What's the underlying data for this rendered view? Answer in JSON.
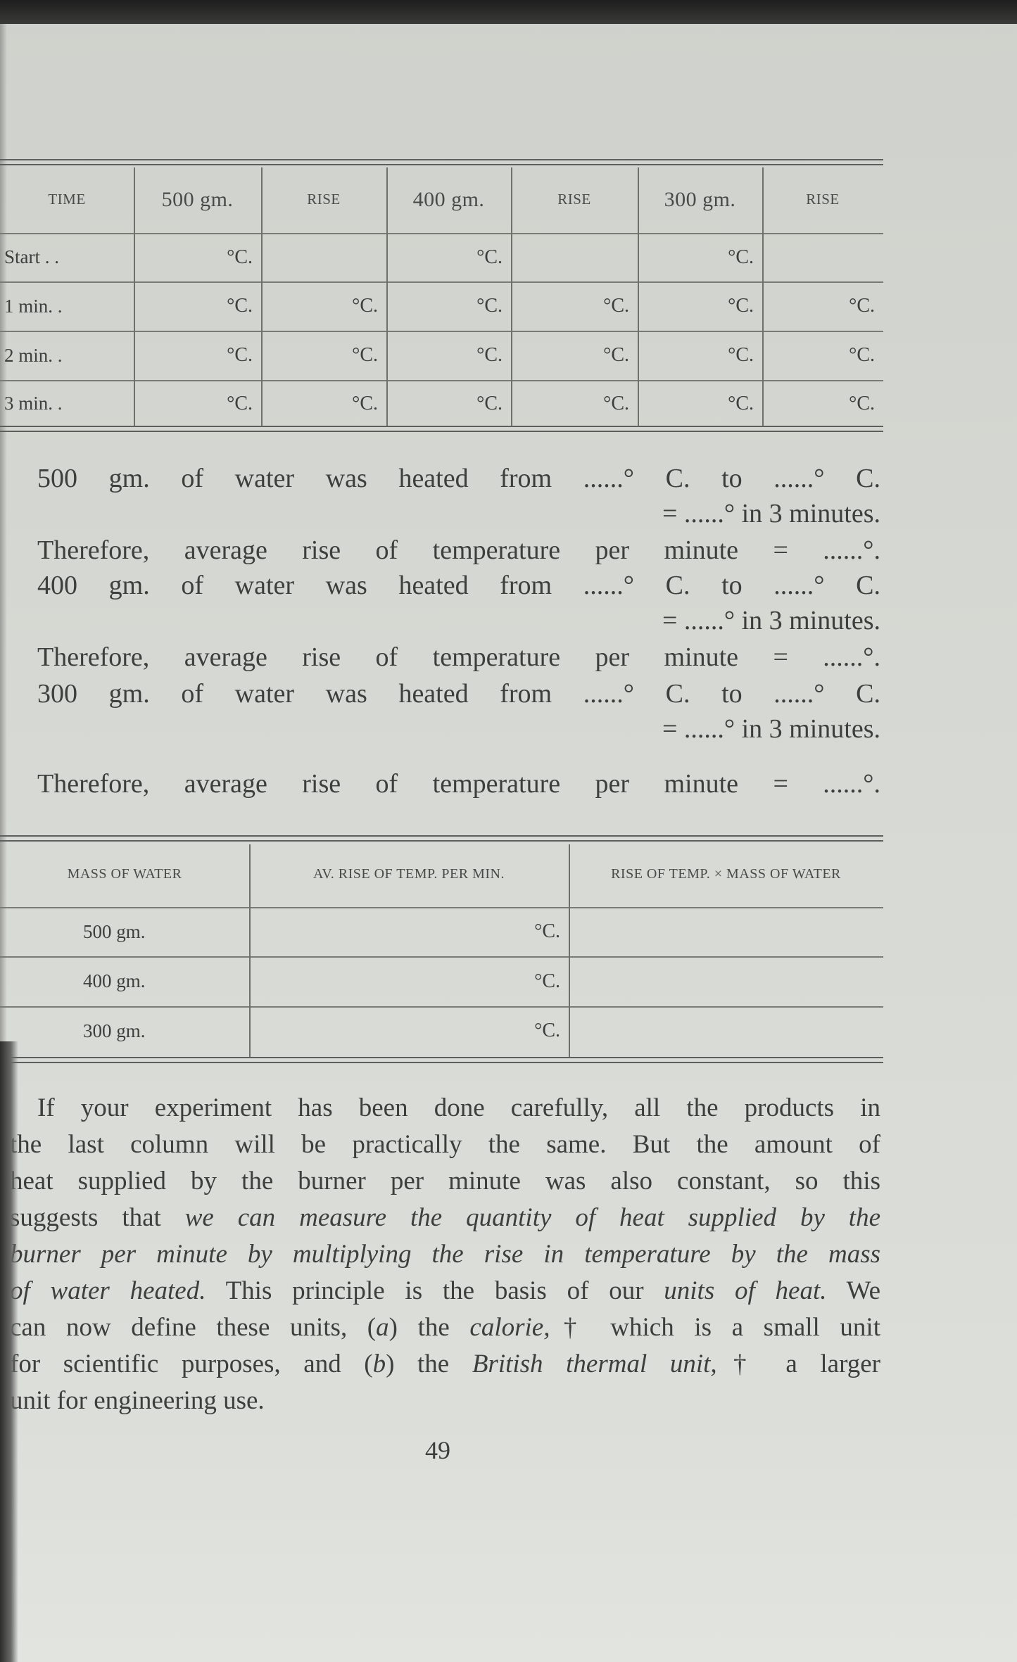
{
  "table1": {
    "headers": [
      "TIME",
      "500 gm.",
      "RISE",
      "400 gm.",
      "RISE",
      "300 gm.",
      "RISE"
    ],
    "rows": [
      {
        "label": "Start . .",
        "cells": [
          "°C.",
          "",
          "°C.",
          "",
          "°C.",
          ""
        ]
      },
      {
        "label": "1 min. .",
        "cells": [
          "°C.",
          "°C.",
          "°C.",
          "°C.",
          "°C.",
          "°C."
        ]
      },
      {
        "label": "2 min. .",
        "cells": [
          "°C.",
          "°C.",
          "°C.",
          "°C.",
          "°C.",
          "°C."
        ]
      },
      {
        "label": "3 min. .",
        "cells": [
          "°C.",
          "°C.",
          "°C.",
          "°C.",
          "°C.",
          "°C."
        ]
      }
    ]
  },
  "calc_lines": [
    {
      "text": "500 gm. of water was heated from ......° C. to ......° C.",
      "align": "justify"
    },
    {
      "text": "= ......° in 3 minutes.",
      "align": "right"
    },
    {
      "text": "Therefore, average rise of temperature per minute = ......°.",
      "align": "justify"
    },
    {
      "text": "400 gm. of water was heated from ......° C. to ......° C.",
      "align": "justify"
    },
    {
      "text": "= ......° in 3 minutes.",
      "align": "right"
    },
    {
      "text": "Therefore, average rise of temperature per minute = ......°.",
      "align": "justify"
    },
    {
      "text": "300 gm. of water was heated from ......° C. to ......° C.",
      "align": "justify"
    },
    {
      "text": "= ......° in 3 minutes.",
      "align": "right"
    },
    {
      "text": "Therefore, average rise of temperature per minute = ......°.",
      "align": "justify"
    }
  ],
  "table2": {
    "headers": [
      "MASS OF WATER",
      "AV. RISE OF TEMP. PER MIN.",
      "RISE OF TEMP. × MASS OF WATER"
    ],
    "rows": [
      {
        "mass": "500 gm.",
        "rise": "°C.",
        "product": ""
      },
      {
        "mass": "400 gm.",
        "rise": "°C.",
        "product": ""
      },
      {
        "mass": "300 gm.",
        "rise": "°C.",
        "product": ""
      }
    ]
  },
  "paragraph_lines": [
    [
      {
        "t": "If your experiment has been done carefully, all the products in"
      }
    ],
    [
      {
        "t": "the last column will be practically the same. But the amount of"
      }
    ],
    [
      {
        "t": "heat supplied by the burner per minute was also constant, so this"
      }
    ],
    [
      {
        "t": "suggests that "
      },
      {
        "t": "we can measure the quantity of heat supplied by the",
        "i": true
      }
    ],
    [
      {
        "t": "burner per minute by multiplying the rise in temperature by the mass",
        "i": true
      }
    ],
    [
      {
        "t": "of water heated.",
        "i": true
      },
      {
        "t": " This principle is the basis of our "
      },
      {
        "t": "units of heat.",
        "i": true
      },
      {
        "t": " We"
      }
    ],
    [
      {
        "t": "can now define these units, ("
      },
      {
        "t": "a",
        "i": true
      },
      {
        "t": ") the "
      },
      {
        "t": "calorie,",
        "i": true
      },
      {
        "t": "† which is a small unit"
      }
    ],
    [
      {
        "t": "for scientific purposes, and ("
      },
      {
        "t": "b",
        "i": true
      },
      {
        "t": ") the "
      },
      {
        "t": "British thermal unit,",
        "i": true
      },
      {
        "t": "† a larger"
      }
    ],
    [
      {
        "t": "unit for engineering use."
      }
    ]
  ],
  "page_number": "49"
}
